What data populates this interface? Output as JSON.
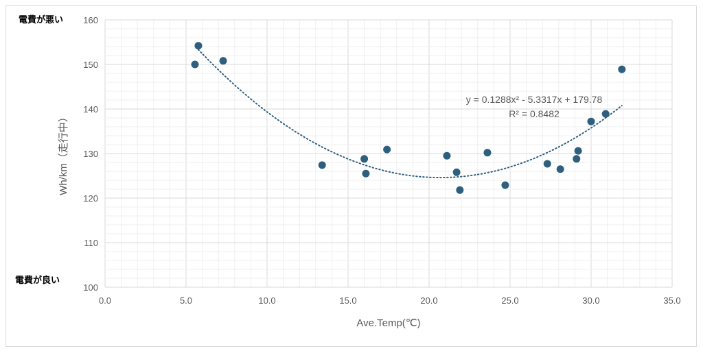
{
  "chart_data": {
    "type": "scatter",
    "xlabel": "Ave.Temp(℃)",
    "ylabel": "Wh/km（走行中）",
    "xlim": [
      0,
      35
    ],
    "ylim": [
      100,
      160
    ],
    "x_ticks": [
      "0.0",
      "5.0",
      "10.0",
      "15.0",
      "20.0",
      "25.0",
      "30.0",
      "35.0"
    ],
    "y_ticks": [
      "100",
      "110",
      "120",
      "130",
      "140",
      "150",
      "160"
    ],
    "grid": true,
    "annotations": {
      "top": "電費が悪い",
      "bottom": "電費が良い"
    },
    "points": [
      [
        5.55,
        150.0
      ],
      [
        5.76,
        154.2
      ],
      [
        7.29,
        150.8
      ],
      [
        13.4,
        127.4
      ],
      [
        16.0,
        128.8
      ],
      [
        16.1,
        125.5
      ],
      [
        17.4,
        130.9
      ],
      [
        21.1,
        129.5
      ],
      [
        21.7,
        125.8
      ],
      [
        21.9,
        121.8
      ],
      [
        23.6,
        130.2
      ],
      [
        24.7,
        122.9
      ],
      [
        27.3,
        127.7
      ],
      [
        28.1,
        126.5
      ],
      [
        29.1,
        128.8
      ],
      [
        29.2,
        130.6
      ],
      [
        30.0,
        137.2
      ],
      [
        30.9,
        138.9
      ],
      [
        31.9,
        148.9
      ]
    ],
    "trendline": {
      "type": "polynomial",
      "coefficients": [
        0.1288,
        -5.3317,
        179.78
      ],
      "x_range": [
        5.76,
        31.9
      ],
      "equation": "y = 0.1288x² - 5.3317x + 179.78",
      "r2": "R² = 0.8482"
    },
    "colors": {
      "marker": "#2e5f7f",
      "grid_major": "#d9d9d9",
      "grid_minor": "#efefef"
    }
  }
}
